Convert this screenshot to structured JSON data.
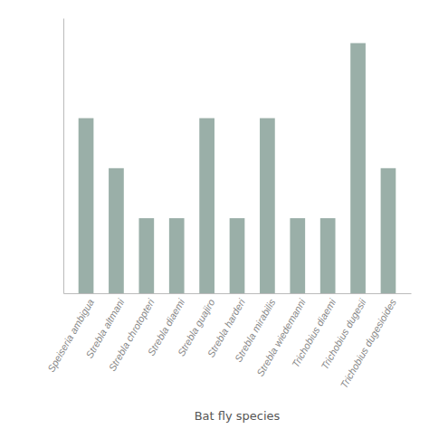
{
  "chart_data": {
    "type": "bar",
    "xlabel": "Bat fly species",
    "categories": [
      "Speiseria ambigua",
      "Strebla altmani",
      "Strebla chrotopteri",
      "Strebla diaemi",
      "Strebla guajiro",
      "Strebla harderi",
      "Strebla mirabilis",
      "Strebla wiedemanni",
      "Trichobius diaemi",
      "Trichobius dugesii",
      "Trichobius dugesioides"
    ],
    "values": [
      7,
      5,
      3,
      3,
      7,
      3,
      7,
      3,
      3,
      10,
      5
    ],
    "color": "#9aafa8",
    "ylim": [
      0,
      11
    ],
    "tick_labels": "x",
    "grid": false
  }
}
